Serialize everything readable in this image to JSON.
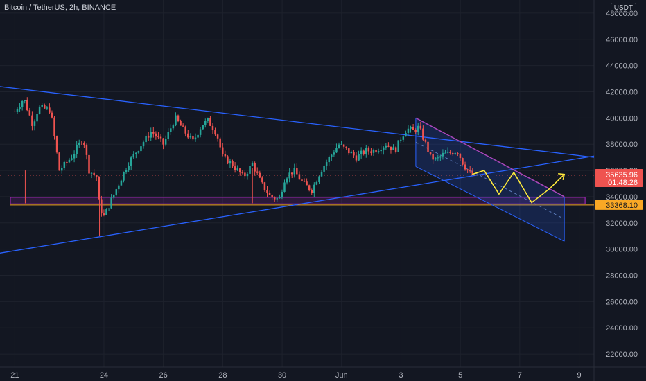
{
  "header": {
    "symbol_title": "Bitcoin / TetherUS, 2h, BINANCE",
    "currency_label": "USDT"
  },
  "price_tags": {
    "last_price": "35635.96",
    "countdown": "01:48:26",
    "support_level": "33368.10"
  },
  "colors": {
    "background": "#131722",
    "grid": "#1e222d",
    "up_candle": "#26a69a",
    "down_candle": "#ef5350",
    "trendline": "#2962ff",
    "channel_fill": "#1e4a7a",
    "wedge_line": "#ab47bc",
    "support_box": "#9c27b0",
    "support_line": "#f9a825",
    "projection": "#ffeb3b",
    "axis_text": "#b2b5be"
  },
  "chart_data": {
    "type": "candlestick",
    "title": "Bitcoin / TetherUS, 2h, BINANCE",
    "y_ticks": [
      22000,
      24000,
      26000,
      28000,
      30000,
      32000,
      34000,
      36000,
      38000,
      40000,
      42000,
      44000,
      46000,
      48000
    ],
    "y_tick_labels": [
      "22000.00",
      "24000.00",
      "26000.00",
      "28000.00",
      "30000.00",
      "32000.00",
      "34000.00",
      "36000.00",
      "38000.00",
      "40000.00",
      "42000.00",
      "44000.00",
      "46000.00",
      "48000.00"
    ],
    "ylim": [
      21000,
      49000
    ],
    "x_tick_labels": [
      "21",
      "24",
      "26",
      "28",
      "30",
      "Jun",
      "3",
      "5",
      "7",
      "9"
    ],
    "x_tick_days": [
      0,
      3,
      5,
      7,
      9,
      11,
      13,
      15,
      17,
      19
    ],
    "xlim_days": [
      -0.5,
      19.5
    ],
    "candle_anchor_days": [
      0,
      0.3,
      0.6,
      0.8,
      1.2,
      1.5,
      1.9,
      2.3,
      2.5,
      2.75,
      2.85,
      3.0,
      3.5,
      3.8,
      4.2,
      4.6,
      5.0,
      5.4,
      5.7,
      6.0,
      6.3,
      6.5,
      6.8,
      7.0,
      7.3,
      7.7,
      8.0,
      8.3,
      8.6,
      8.9,
      9.1,
      9.4,
      9.7,
      10.0,
      10.3,
      10.6,
      10.9,
      11.2,
      11.5,
      11.8,
      12.1,
      12.5,
      12.8,
      13.0,
      13.2,
      13.4,
      13.6,
      13.8,
      14.0,
      14.2,
      14.4,
      14.6,
      14.9,
      15.1,
      15.3,
      15.45
    ],
    "candle_anchor_prices": [
      40500,
      41500,
      39500,
      40800,
      40600,
      36000,
      37000,
      38500,
      36000,
      35500,
      33200,
      32500,
      35000,
      36500,
      37800,
      39000,
      38000,
      40000,
      39000,
      38200,
      39500,
      39800,
      38800,
      37000,
      36500,
      35500,
      36500,
      35000,
      34000,
      33800,
      35500,
      36000,
      35000,
      34500,
      36000,
      37000,
      38000,
      37500,
      37000,
      37500,
      37500,
      38000,
      37500,
      38500,
      39200,
      39000,
      39300,
      38200,
      37000,
      36800,
      37200,
      37300,
      37500,
      36500,
      35800,
      35636
    ],
    "candle_step_days": 0.0833,
    "trendlines": [
      {
        "from": [
          -0.5,
          42400
        ],
        "to": [
          19.5,
          37000
        ]
      },
      {
        "from": [
          -0.5,
          29700
        ],
        "to": [
          19.5,
          37100
        ]
      }
    ],
    "channel": {
      "upper": [
        [
          13.5,
          40000
        ],
        [
          18.5,
          34000
        ]
      ],
      "lower": [
        [
          13.5,
          36300
        ],
        [
          18.5,
          30600
        ]
      ],
      "mid": [
        [
          13.5,
          38150
        ],
        [
          18.5,
          32300
        ]
      ]
    },
    "wedge_line": {
      "from": [
        13.5,
        40000
      ],
      "to": [
        18.5,
        34000
      ]
    },
    "support_zone": {
      "top": 33950,
      "bottom": 33450,
      "from_day": -0.15,
      "to_day": 19.2
    },
    "support_price": 33368.1,
    "last_price": 35635.96,
    "projection_path": [
      [
        15.4,
        35700
      ],
      [
        15.8,
        36000
      ],
      [
        16.3,
        34200
      ],
      [
        16.8,
        35850
      ],
      [
        17.4,
        33550
      ],
      [
        18.0,
        34600
      ],
      [
        18.5,
        35700
      ]
    ]
  }
}
